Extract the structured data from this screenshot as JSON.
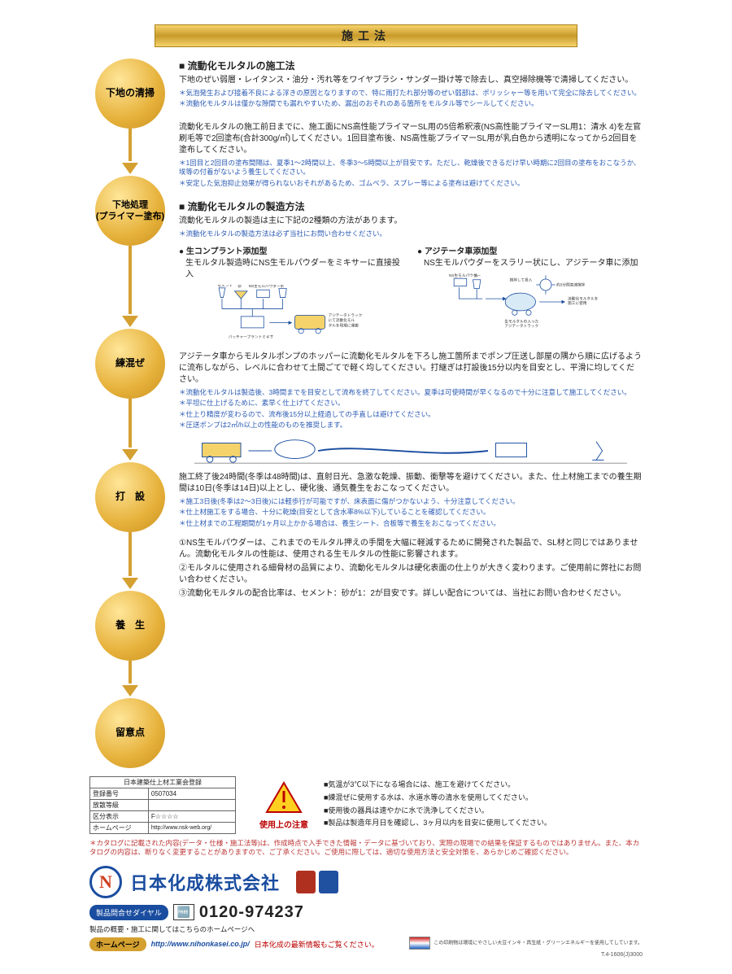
{
  "title": "施工法",
  "flow_nodes": [
    "下地の清掃",
    "下地処理\n(プライマー塗布)",
    "練混ぜ",
    "打　設",
    "養　生",
    "留意点"
  ],
  "sec1": {
    "heading": "■ 流動化モルタルの施工法",
    "p1": "下地のぜい弱層・レイタンス・油分・汚れ等をワイヤブラシ・サンダー掛け等で除去し、真空掃除機等で清掃してください。",
    "n1": "＊気泡発生および接着不良による浮きの原因となりますので、特に雨打たれ部分等のぜい弱部は、ポリッシャー等を用いて完全に除去してください。",
    "n2": "＊流動化モルタルは僅かな隙間でも漏れやすいため、漏出のおそれのある箇所をモルタル等でシールしてください。"
  },
  "sec2": {
    "p1": "流動化モルタルの施工前日までに、施工面にNS高性能プライマーSL用の5倍希釈液(NS高性能プライマーSL用1：清水 4)を左官刷毛等で2回塗布(合計300g/㎡)してください。1回目塗布後、NS高性能プライマーSL用が乳白色から透明になってから2回目を塗布してください。",
    "n1": "＊1回目と2回目の塗布間隔は、夏季1〜2時間以上、冬季3〜5時間以上が目安です。ただし、乾燥後できるだけ早い時期に2回目の塗布をおこなうか、埃等の付着がないよう養生してください。",
    "n2": "＊安定した気泡抑止効果が得られないおそれがあるため、ゴムベラ、スプレー等による塗布は避けてください。"
  },
  "sec3": {
    "heading": "■ 流動化モルタルの製造方法",
    "p1": "流動化モルタルの製造は主に下記の2種類の方法があります。",
    "n1": "＊流動化モルタルの製造方法は必ず当社にお問い合わせください。",
    "col1_head": "● 生コンプラント添加型",
    "col1_desc": "生モルタル製造時にNS生モルパウダーをミキサーに直接投入",
    "col2_head": "● アジテータ車添加型",
    "col2_desc": "NS生モルパウダーをスラリー状にし、アジテータ車に添加",
    "d1_labels": [
      "セメント",
      "砂",
      "NS生モルパウダー",
      "水",
      "バッチャープラントミキサ",
      "アジテータトラックにて流動化モルタルを現場に運搬"
    ],
    "d2_labels": [
      "NS生モルパウダー",
      "水",
      "撹拌して投入",
      "約3分間高速撹拌",
      "生モルタルの入ったアジテータトラック",
      "流動化モルタルを施工に使用"
    ]
  },
  "sec4": {
    "p1": "アジテータ車からモルタルポンプのホッパーに流動化モルタルを下ろし施工箇所までポンプ圧送し部屋の隅から順に広げるように流布しながら、レベルに合わせて土間ごてで軽く均してください。打継ぎは打設後15分以内を目安とし、平滑に均してください。",
    "n1": "＊流動化モルタルは製造後、3時間までを目安として流布を終了してください。夏季は可使時間が早くなるので十分に注意して施工してください。",
    "n2": "＊平坦に仕上げるために、素早く仕上げてください。",
    "n3": "＊仕上り精度が変わるので、流布後15分以上経過しての手直しは避けてください。",
    "n4": "＊圧送ポンプは2㎥/h以上の性能のものを推奨します。"
  },
  "sec5": {
    "p1": "施工終了後24時間(冬季は48時間)は、直射日光、急激な乾燥、振動、衝撃等を避けてください。また、仕上材施工までの養生期間は10日(冬季は14日)以上とし、硬化後、通気養生をおこなってください。",
    "n1": "＊施工3日後(冬季は2〜3日後)には軽歩行が可能ですが、床表面に傷がつかないよう、十分注意してください。",
    "n2": "＊仕上材施工をする場合、十分に乾燥(目安として含水率8%以下)していることを確認してください。",
    "n3": "＊仕上材までの工程期間が1ヶ月以上かかる場合は、養生シート、合板等で養生をおこなってください。"
  },
  "sec6": {
    "p1": "①NS生モルパウダーは、これまでのモルタル押えの手間を大幅に軽減するために開発された製品で、SL材と同じではありません。流動化モルタルの性能は、使用される生モルタルの性能に影響されます。",
    "p2": "②モルタルに使用される細骨材の品質により、流動化モルタルは硬化表面の仕上りが大きく変わります。ご使用前に弊社にお問い合わせください。",
    "p3": "③流動化モルタルの配合比率は、セメント：砂が1：2が目安です。詳しい配合については、当社にお問い合わせください。"
  },
  "reg": {
    "th": "日本建築仕上材工業会登録",
    "r1a": "登録番号",
    "r1b": "0507034",
    "r2a": "放散等級",
    "r2b": "",
    "r3a": "区分表示",
    "r3b": "F☆☆☆☆",
    "r4a": "ホームページ",
    "r4b": "http://www.nsk-web.org/"
  },
  "caution": {
    "label": "使用上の注意",
    "b1": "■気温が3℃以下になる場合には、施工を避けてください。",
    "b2": "■練混ぜに使用する水は、水道水等の清水を使用してください。",
    "b3": "■使用後の器具は速やかに水で洗浄してください。",
    "b4": "■製品は製造年月日を確認し、3ヶ月以内を目安に使用してください。"
  },
  "disclaimer": "＊カタログに記載された内容(データ・仕様・施工法等)は、作成時点で入手できた情報・データに基づいており、実際の現場での結果を保証するものではありません。また、本カタログの内容は、断りなく変更することがありますので、ご了承ください。ご使用に際しては、適切な使用方法と安全対策を、あらかじめご確認ください。",
  "company": "日本化成株式会社",
  "contact_tag": "製品問合せダイヤル",
  "tel_prefix": "ᯤ",
  "tel": "0120-974237",
  "sub_contact": "製品の概要・施工に関してはこちらのホームページへ",
  "hp_tag": "ホームページ",
  "hp_url": "http://www.nihonkasei.co.jp/",
  "hp_txt": "日本化成の最新情報もご覧ください。",
  "fr_txt": "この印刷物は環境にやさしい大豆インキ・再生紙・グリーンエネルギーを使用してしています。",
  "doc_id": "T.4-1606(J)3000",
  "colors": {
    "gold": "#d4a030",
    "blue": "#1a4da0",
    "red": "#b03020",
    "note_blue": "#2a5ab3"
  }
}
